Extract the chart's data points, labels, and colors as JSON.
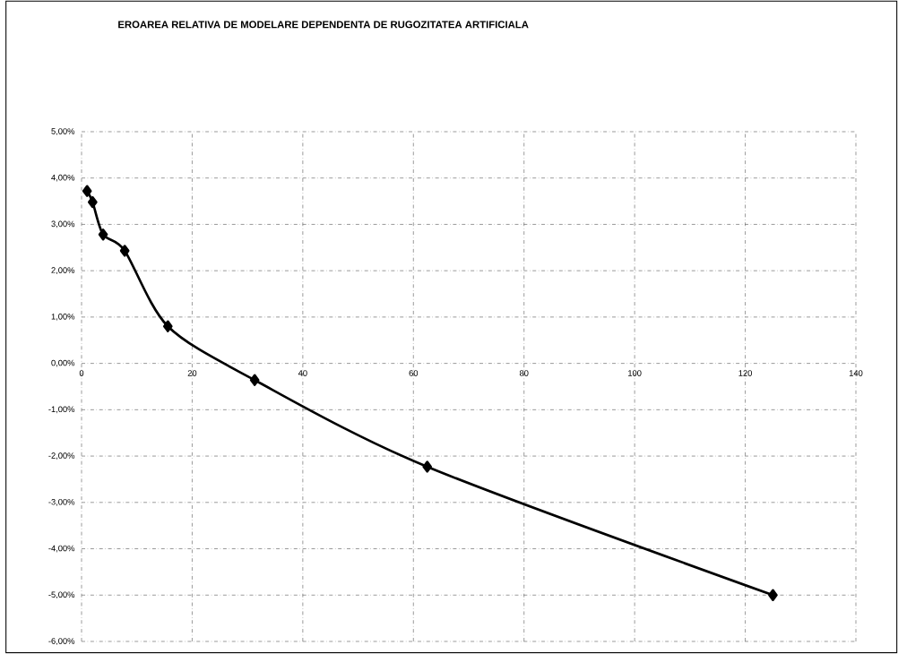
{
  "chart_data": {
    "type": "line",
    "title": "EROAREA RELATIVA DE MODELARE DEPENDENTA DE RUGOZITATEA ARTIFICIALA",
    "x": [
      1,
      2,
      3.9,
      7.8,
      15.6,
      31.3,
      62.5,
      125
    ],
    "values": [
      3.72,
      3.48,
      2.78,
      2.43,
      0.8,
      -0.36,
      -2.23,
      -5.0
    ],
    "color": "#000000",
    "xlim": [
      0,
      140
    ],
    "xticks": [
      0,
      20,
      40,
      60,
      80,
      100,
      120,
      140
    ],
    "ylim": [
      -6,
      5
    ],
    "yticks": [
      {
        "value": 5,
        "label": "5,00%"
      },
      {
        "value": 4,
        "label": "4,00%"
      },
      {
        "value": 3,
        "label": "3,00%"
      },
      {
        "value": 2,
        "label": "2,00%"
      },
      {
        "value": 1,
        "label": "1,00%"
      },
      {
        "value": 0,
        "label": "0,00%"
      },
      {
        "value": -1,
        "label": "-1,00%"
      },
      {
        "value": -2,
        "label": "-2,00%"
      },
      {
        "value": -3,
        "label": "-3,00%"
      },
      {
        "value": -4,
        "label": "-4,00%"
      },
      {
        "value": -5,
        "label": "-5,00%"
      },
      {
        "value": -6,
        "label": "-6,00%"
      }
    ],
    "grid": true,
    "marker": "diamond",
    "line_style": "solid"
  }
}
